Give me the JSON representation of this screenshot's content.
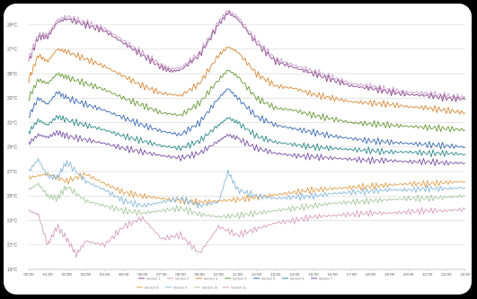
{
  "chart_data": {
    "type": "line",
    "title": "",
    "xlabel": "",
    "ylabel": "",
    "grid": true,
    "legend_placement": "bottom",
    "x_ticks": [
      "00:00",
      "01:00",
      "02:00",
      "03:00",
      "04:00",
      "05:00",
      "06:00",
      "07:00",
      "08:00",
      "09:00",
      "10:00",
      "11:00",
      "12:00",
      "13:00",
      "14:00",
      "15:00",
      "16:00",
      "17:00",
      "18:00",
      "19:00",
      "20:00",
      "21:00",
      "22:00",
      "23:00"
    ],
    "y_ticks": [
      "39°C",
      "37°C",
      "35°C",
      "33°C",
      "31°C",
      "29°C",
      "27°C",
      "25°C",
      "23°C",
      "21°C",
      "19°C"
    ],
    "ylim": [
      19,
      40
    ],
    "x_range": [
      0,
      23
    ],
    "series": [
      {
        "name": "Sensor 1",
        "color": "#8e4b8e",
        "x": [
          0,
          0.5,
          1,
          1.5,
          2,
          3,
          4,
          5,
          6,
          7,
          7.5,
          8,
          9,
          10,
          10.5,
          11,
          12,
          13,
          14,
          15,
          16,
          17,
          18,
          19,
          20,
          21,
          22,
          23
        ],
        "y": [
          36,
          38,
          38,
          39.2,
          39.5,
          39,
          38.5,
          37.5,
          36.5,
          35.5,
          35.2,
          35.3,
          36.5,
          39,
          40,
          39.5,
          37.5,
          36,
          35.5,
          35,
          34.5,
          34,
          33.8,
          33.5,
          33.3,
          33.2,
          33,
          32.9
        ]
      },
      {
        "name": "Sensor 2",
        "color": "#c9a0c9",
        "x": [
          0,
          0.5,
          1,
          1.5,
          2,
          3,
          4,
          5,
          6,
          7,
          7.5,
          8,
          9,
          10,
          10.5,
          11,
          12,
          13,
          14,
          15,
          16,
          17,
          18,
          19,
          20,
          21,
          22,
          23
        ],
        "y": [
          36.2,
          38.2,
          38.2,
          39.4,
          39.7,
          39.2,
          38.7,
          37.7,
          36.7,
          35.7,
          35.4,
          35.5,
          36.7,
          39.2,
          40.2,
          39.7,
          37.7,
          36.2,
          35.7,
          35.2,
          34.7,
          34.2,
          34,
          33.7,
          33.5,
          33.4,
          33.2,
          33.1
        ]
      },
      {
        "name": "Sensor 3",
        "color": "#d98a3a",
        "x": [
          0,
          0.5,
          1,
          1.5,
          2,
          3,
          4,
          5,
          6,
          7,
          8,
          9,
          10,
          10.5,
          11,
          12,
          13,
          14,
          15,
          16,
          17,
          18,
          19,
          20,
          21,
          22,
          23
        ],
        "y": [
          34.5,
          36.5,
          36,
          37,
          36.8,
          36.2,
          35.6,
          34.8,
          34,
          33.4,
          33.2,
          34.2,
          36.5,
          37.2,
          36.8,
          35,
          34,
          33.8,
          33.3,
          33,
          32.7,
          32.6,
          32.5,
          32.3,
          32.2,
          32,
          31.8
        ]
      },
      {
        "name": "Sensor 4",
        "color": "#6a9a3a",
        "x": [
          0,
          0.5,
          1,
          1.5,
          2,
          3,
          4,
          5,
          6,
          7,
          8,
          9,
          10,
          10.5,
          11,
          12,
          13,
          14,
          15,
          16,
          17,
          18,
          19,
          20,
          21,
          22,
          23
        ],
        "y": [
          33,
          34.5,
          34.2,
          35,
          34.7,
          34.2,
          33.7,
          33,
          32.4,
          31.8,
          31.6,
          32.6,
          34.5,
          35.3,
          34.8,
          33,
          32.2,
          32,
          31.6,
          31.3,
          31,
          30.9,
          30.8,
          30.7,
          30.6,
          30.5,
          30.4
        ]
      },
      {
        "name": "Sensor 5",
        "color": "#3d6bb3",
        "x": [
          0,
          0.5,
          1,
          1.5,
          2,
          3,
          4,
          5,
          6,
          7,
          8,
          9,
          10,
          10.5,
          11,
          12,
          13,
          14,
          15,
          16,
          17,
          18,
          19,
          20,
          21,
          22,
          23
        ],
        "y": [
          31.5,
          33,
          32.5,
          33.5,
          33,
          32.5,
          32,
          31.4,
          30.8,
          30.3,
          30,
          31,
          33,
          33.8,
          33,
          31.5,
          30.8,
          30.5,
          30.2,
          29.9,
          29.7,
          29.5,
          29.4,
          29.3,
          29.2,
          29.1,
          29
        ]
      },
      {
        "name": "Sensor 6",
        "color": "#2f8a8a",
        "x": [
          0,
          0.5,
          1,
          1.5,
          2,
          3,
          4,
          5,
          6,
          7,
          8,
          9,
          10,
          10.5,
          11,
          12,
          13,
          14,
          15,
          16,
          17,
          18,
          19,
          20,
          21,
          22,
          23
        ],
        "y": [
          30.2,
          31.2,
          30.8,
          31.5,
          31.2,
          30.8,
          30.4,
          29.9,
          29.5,
          29.1,
          28.9,
          29.5,
          30.8,
          31.4,
          31,
          29.9,
          29.4,
          29.2,
          29,
          28.9,
          28.8,
          28.7,
          28.6,
          28.6,
          28.5,
          28.5,
          28.4
        ]
      },
      {
        "name": "Sensor 7",
        "color": "#7a52a8",
        "x": [
          0,
          0.5,
          1,
          1.5,
          2,
          3,
          4,
          5,
          6,
          7,
          8,
          9,
          10,
          10.5,
          11,
          12,
          13,
          14,
          15,
          16,
          17,
          18,
          19,
          20,
          21,
          22,
          23
        ],
        "y": [
          29.3,
          30,
          29.8,
          30.2,
          29.9,
          29.6,
          29.3,
          28.9,
          28.6,
          28.3,
          28.1,
          28.5,
          29.5,
          30,
          29.7,
          28.9,
          28.5,
          28.3,
          28.2,
          28.1,
          28,
          27.9,
          27.9,
          27.8,
          27.8,
          27.7,
          27.7
        ]
      },
      {
        "name": "Sensor 8",
        "color": "#e0a050",
        "x": [
          0,
          1,
          2,
          3,
          4,
          5,
          6,
          7,
          8,
          9,
          10,
          11,
          12,
          13,
          14,
          15,
          16,
          17,
          18,
          19,
          20,
          21,
          22,
          23
        ],
        "y": [
          26.5,
          26.8,
          26.2,
          26.8,
          26,
          25.3,
          25,
          24.8,
          24.6,
          24.5,
          24.6,
          24.7,
          24.9,
          25.1,
          25.3,
          25.5,
          25.6,
          25.7,
          25.8,
          25.9,
          26,
          26,
          26.1,
          26.2
        ]
      },
      {
        "name": "Sensor 9",
        "color": "#8ab8d8",
        "x": [
          0,
          0.5,
          1,
          1.5,
          2,
          3,
          4,
          5,
          6,
          7,
          8,
          9,
          10,
          10.5,
          11,
          12,
          13,
          14,
          15,
          16,
          17,
          18,
          19,
          20,
          21,
          22,
          23
        ],
        "y": [
          27,
          28,
          26.6,
          26.5,
          27.8,
          26.2,
          25.5,
          24.6,
          24.2,
          24.5,
          24.8,
          24.2,
          24.5,
          27,
          25.5,
          25,
          24.8,
          24.9,
          25,
          25.2,
          25.3,
          25.4,
          25.5,
          25.5,
          25.6,
          25.6,
          25.7
        ]
      },
      {
        "name": "Sensor 10",
        "color": "#a8c8a0",
        "x": [
          0,
          0.5,
          1,
          1.5,
          2,
          3,
          4,
          5,
          6,
          7,
          8,
          9,
          10,
          11,
          12,
          13,
          14,
          15,
          16,
          17,
          18,
          19,
          20,
          21,
          22,
          23
        ],
        "y": [
          25.5,
          26,
          25,
          24.8,
          25.8,
          24.6,
          24.2,
          23.8,
          23.6,
          23.8,
          24,
          23.5,
          23.3,
          23.4,
          23.6,
          23.8,
          24,
          24.2,
          24.4,
          24.5,
          24.6,
          24.7,
          24.8,
          24.8,
          24.9,
          25
        ]
      },
      {
        "name": "Sensor 11",
        "color": "#d8a0b8",
        "x": [
          0,
          0.5,
          1,
          1.5,
          2,
          2.5,
          3,
          4,
          5,
          6,
          7,
          8,
          9,
          10,
          11,
          12,
          13,
          14,
          15,
          16,
          17,
          18,
          19,
          20,
          21,
          22,
          23
        ],
        "y": [
          23.8,
          23.5,
          21,
          22.5,
          21.5,
          20.2,
          21.3,
          21,
          22.5,
          23.2,
          21.5,
          21.8,
          20.3,
          22.5,
          21.8,
          22.3,
          22.8,
          23,
          23.3,
          23.4,
          23.5,
          23.6,
          23.6,
          23.7,
          23.8,
          23.8,
          23.9
        ]
      }
    ]
  }
}
